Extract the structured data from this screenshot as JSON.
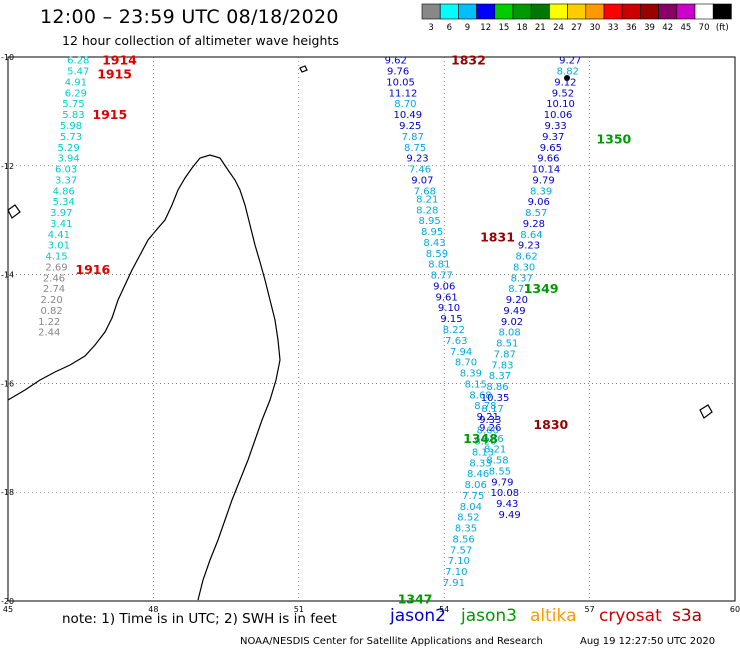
{
  "title": "12:00 – 23:59 UTC 08/18/2020",
  "subtitle": "12 hour collection of altimeter wave heights",
  "legend": {
    "colors": [
      "#888888",
      "#00ffff",
      "#00bfff",
      "#0000ff",
      "#00cc00",
      "#009900",
      "#007700",
      "#ffff00",
      "#ffcc00",
      "#ff9900",
      "#ff0000",
      "#cc0000",
      "#990000",
      "#880066",
      "#cc00cc",
      "#ffffff",
      "#000000"
    ],
    "labels": [
      "3",
      "6",
      "9",
      "12",
      "15",
      "18",
      "21",
      "24",
      "27",
      "30",
      "33",
      "36",
      "39",
      "42",
      "45",
      "70",
      "(ft)"
    ]
  },
  "axes": {
    "x_ticks": [
      45,
      48,
      51,
      54,
      57,
      60
    ],
    "y_ticks": [
      -10,
      -12,
      -14,
      -16,
      -18,
      -20
    ],
    "x_ticks_labels": [
      "45",
      "48",
      "51",
      "54",
      "57",
      "60"
    ],
    "y_ticks_labels": [
      "-10",
      "-12",
      "-14",
      "-16",
      "-18",
      "-20"
    ]
  },
  "note": "note: 1) Time is in UTC; 2) SWH is in feet",
  "satellites": [
    {
      "name": "jason2",
      "color": "#0000cc"
    },
    {
      "name": "jason3",
      "color": "#009900"
    },
    {
      "name": "altika",
      "color": "#ff9900"
    },
    {
      "name": "cryosat",
      "color": "#cc0000"
    },
    {
      "name": "s3a",
      "color": "#aa0000"
    }
  ],
  "footer_credit": "NOAA/NESDIS Center for Satellite Applications and Research",
  "footer_time": "Aug 19 12:27:50 UTC 2020",
  "pass_times": [
    {
      "label": "1914",
      "color": "#dd0000",
      "lon": 47.3,
      "lat": -10.05
    },
    {
      "label": "1915",
      "color": "#dd0000",
      "lon": 47.2,
      "lat": -10.3
    },
    {
      "label": "1915",
      "color": "#dd0000",
      "lon": 47.1,
      "lat": -11.05
    },
    {
      "label": "1916",
      "color": "#dd0000",
      "lon": 46.75,
      "lat": -13.9
    },
    {
      "label": "1832",
      "color": "#990000",
      "lon": 54.5,
      "lat": -10.05
    },
    {
      "label": "1831",
      "color": "#990000",
      "lon": 55.1,
      "lat": -13.3
    },
    {
      "label": "1830",
      "color": "#990000",
      "lon": 56.2,
      "lat": -16.75
    },
    {
      "label": "1350",
      "color": "#009900",
      "lon": 57.5,
      "lat": -11.5
    },
    {
      "label": "1349",
      "color": "#009900",
      "lon": 56.0,
      "lat": -14.25
    },
    {
      "label": "1348",
      "color": "#009900",
      "lon": 54.75,
      "lat": -17.0
    },
    {
      "label": "1347",
      "color": "#009900",
      "lon": 53.4,
      "lat": -19.95
    }
  ],
  "track_west": [
    {
      "v": "6.28",
      "c": "#00cccc",
      "lon": 46.45,
      "lat": -10.05
    },
    {
      "v": "5.47",
      "c": "#00cccc",
      "lon": 46.45,
      "lat": -10.25
    },
    {
      "v": "4.91",
      "c": "#00cccc",
      "lon": 46.4,
      "lat": -10.45
    },
    {
      "v": "6.29",
      "c": "#00cccc",
      "lon": 46.4,
      "lat": -10.65
    },
    {
      "v": "5.75",
      "c": "#00cccc",
      "lon": 46.35,
      "lat": -10.85
    },
    {
      "v": "5.83",
      "c": "#00cccc",
      "lon": 46.35,
      "lat": -11.05
    },
    {
      "v": "5.98",
      "c": "#00cccc",
      "lon": 46.3,
      "lat": -11.25
    },
    {
      "v": "5.73",
      "c": "#00cccc",
      "lon": 46.3,
      "lat": -11.45
    },
    {
      "v": "5.29",
      "c": "#00cccc",
      "lon": 46.25,
      "lat": -11.65
    },
    {
      "v": "3.94",
      "c": "#00cccc",
      "lon": 46.25,
      "lat": -11.85
    },
    {
      "v": "6.03",
      "c": "#00cccc",
      "lon": 46.2,
      "lat": -12.05
    },
    {
      "v": "3.37",
      "c": "#00cccc",
      "lon": 46.2,
      "lat": -12.25
    },
    {
      "v": "4.86",
      "c": "#00cccc",
      "lon": 46.15,
      "lat": -12.45
    },
    {
      "v": "5.34",
      "c": "#00cccc",
      "lon": 46.15,
      "lat": -12.65
    },
    {
      "v": "3.97",
      "c": "#00cccc",
      "lon": 46.1,
      "lat": -12.85
    },
    {
      "v": "3.41",
      "c": "#00cccc",
      "lon": 46.1,
      "lat": -13.05
    },
    {
      "v": "4.41",
      "c": "#00cccc",
      "lon": 46.05,
      "lat": -13.25
    },
    {
      "v": "3.01",
      "c": "#00cccc",
      "lon": 46.05,
      "lat": -13.45
    },
    {
      "v": "4.15",
      "c": "#00cccc",
      "lon": 46.0,
      "lat": -13.65
    },
    {
      "v": "2.69",
      "c": "#888888",
      "lon": 46.0,
      "lat": -13.85
    },
    {
      "v": "2.46",
      "c": "#888888",
      "lon": 45.95,
      "lat": -14.05
    },
    {
      "v": "2.74",
      "c": "#888888",
      "lon": 45.95,
      "lat": -14.25
    },
    {
      "v": "2.20",
      "c": "#888888",
      "lon": 45.9,
      "lat": -14.45
    },
    {
      "v": "0.82",
      "c": "#888888",
      "lon": 45.9,
      "lat": -14.65
    },
    {
      "v": "1.22",
      "c": "#888888",
      "lon": 45.85,
      "lat": -14.85
    },
    {
      "v": "2.44",
      "c": "#888888",
      "lon": 45.85,
      "lat": -15.05
    }
  ],
  "track_s3a": [
    {
      "v": "9.62",
      "c": "#0000cc",
      "lon": 53.0,
      "lat": -10.05
    },
    {
      "v": "9.76",
      "c": "#0000cc",
      "lon": 53.05,
      "lat": -10.25
    },
    {
      "v": "10.05",
      "c": "#0000cc",
      "lon": 53.1,
      "lat": -10.45
    },
    {
      "v": "11.12",
      "c": "#0000cc",
      "lon": 53.15,
      "lat": -10.65
    },
    {
      "v": "8.70",
      "c": "#00aadd",
      "lon": 53.2,
      "lat": -10.85
    },
    {
      "v": "10.49",
      "c": "#0000cc",
      "lon": 53.25,
      "lat": -11.05
    },
    {
      "v": "9.25",
      "c": "#0000cc",
      "lon": 53.3,
      "lat": -11.25
    },
    {
      "v": "7.87",
      "c": "#00aadd",
      "lon": 53.35,
      "lat": -11.45
    },
    {
      "v": "8.75",
      "c": "#00aadd",
      "lon": 53.4,
      "lat": -11.65
    },
    {
      "v": "9.23",
      "c": "#0000cc",
      "lon": 53.45,
      "lat": -11.85
    },
    {
      "v": "7.46",
      "c": "#00aadd",
      "lon": 53.5,
      "lat": -12.05
    },
    {
      "v": "9.07",
      "c": "#0000cc",
      "lon": 53.55,
      "lat": -12.25
    },
    {
      "v": "7.68",
      "c": "#00aadd",
      "lon": 53.6,
      "lat": -12.45
    },
    {
      "v": "8.21",
      "c": "#00aadd",
      "lon": 53.65,
      "lat": -12.6
    },
    {
      "v": "8.28",
      "c": "#00aadd",
      "lon": 53.65,
      "lat": -12.8
    },
    {
      "v": "8.95",
      "c": "#00aadd",
      "lon": 53.7,
      "lat": -13.0
    },
    {
      "v": "8.95",
      "c": "#00aadd",
      "lon": 53.75,
      "lat": -13.2
    },
    {
      "v": "8.43",
      "c": "#00aadd",
      "lon": 53.8,
      "lat": -13.4
    },
    {
      "v": "8.59",
      "c": "#00aadd",
      "lon": 53.85,
      "lat": -13.6
    },
    {
      "v": "8.81",
      "c": "#00aadd",
      "lon": 53.9,
      "lat": -13.8
    },
    {
      "v": "8.77",
      "c": "#00aadd",
      "lon": 53.95,
      "lat": -14.0
    },
    {
      "v": "9.06",
      "c": "#0000cc",
      "lon": 54.0,
      "lat": -14.2
    },
    {
      "v": "9.61",
      "c": "#0000cc",
      "lon": 54.05,
      "lat": -14.4
    },
    {
      "v": "9.10",
      "c": "#0000cc",
      "lon": 54.1,
      "lat": -14.6
    },
    {
      "v": "9.15",
      "c": "#0000cc",
      "lon": 54.15,
      "lat": -14.8
    },
    {
      "v": "8.22",
      "c": "#00aadd",
      "lon": 54.2,
      "lat": -15.0
    },
    {
      "v": "7.63",
      "c": "#00aadd",
      "lon": 54.25,
      "lat": -15.2
    },
    {
      "v": "7.94",
      "c": "#00aadd",
      "lon": 54.35,
      "lat": -15.4
    },
    {
      "v": "8.70",
      "c": "#00aadd",
      "lon": 54.45,
      "lat": -15.6
    },
    {
      "v": "8.39",
      "c": "#00aadd",
      "lon": 54.55,
      "lat": -15.8
    },
    {
      "v": "8.15",
      "c": "#00aadd",
      "lon": 54.65,
      "lat": -16.0
    },
    {
      "v": "8.68",
      "c": "#00aadd",
      "lon": 54.75,
      "lat": -16.2
    },
    {
      "v": "8.78",
      "c": "#00aadd",
      "lon": 54.85,
      "lat": -16.4
    },
    {
      "v": "9.21",
      "c": "#0000cc",
      "lon": 54.9,
      "lat": -16.6
    },
    {
      "v": "9.26",
      "c": "#0000cc",
      "lon": 54.95,
      "lat": -16.8
    },
    {
      "v": "8.46",
      "c": "#00aadd",
      "lon": 55.0,
      "lat": -17.0
    },
    {
      "v": "8.21",
      "c": "#00aadd",
      "lon": 55.05,
      "lat": -17.2
    },
    {
      "v": "8.58",
      "c": "#00aadd",
      "lon": 55.1,
      "lat": -17.4
    },
    {
      "v": "8.55",
      "c": "#00aadd",
      "lon": 55.15,
      "lat": -17.6
    },
    {
      "v": "9.79",
      "c": "#0000cc",
      "lon": 55.2,
      "lat": -17.8
    },
    {
      "v": "10.08",
      "c": "#0000cc",
      "lon": 55.25,
      "lat": -18.0
    },
    {
      "v": "9.43",
      "c": "#0000cc",
      "lon": 55.3,
      "lat": -18.2
    },
    {
      "v": "9.49",
      "c": "#0000cc",
      "lon": 55.35,
      "lat": -18.4
    }
  ],
  "track_j3": [
    {
      "v": "9.27",
      "c": "#0000cc",
      "lon": 56.6,
      "lat": -10.05
    },
    {
      "v": "8.82",
      "c": "#00aadd",
      "lon": 56.55,
      "lat": -10.25
    },
    {
      "v": "9.12",
      "c": "#0000cc",
      "lon": 56.5,
      "lat": -10.45
    },
    {
      "v": "9.52",
      "c": "#0000cc",
      "lon": 56.45,
      "lat": -10.65
    },
    {
      "v": "10.10",
      "c": "#0000cc",
      "lon": 56.4,
      "lat": -10.85
    },
    {
      "v": "10.06",
      "c": "#0000cc",
      "lon": 56.35,
      "lat": -11.05
    },
    {
      "v": "9.33",
      "c": "#0000cc",
      "lon": 56.3,
      "lat": -11.25
    },
    {
      "v": "9.37",
      "c": "#0000cc",
      "lon": 56.25,
      "lat": -11.45
    },
    {
      "v": "9.65",
      "c": "#0000cc",
      "lon": 56.2,
      "lat": -11.65
    },
    {
      "v": "9.66",
      "c": "#0000cc",
      "lon": 56.15,
      "lat": -11.85
    },
    {
      "v": "10.14",
      "c": "#0000cc",
      "lon": 56.1,
      "lat": -12.05
    },
    {
      "v": "9.79",
      "c": "#0000cc",
      "lon": 56.05,
      "lat": -12.25
    },
    {
      "v": "8.39",
      "c": "#00aadd",
      "lon": 56.0,
      "lat": -12.45
    },
    {
      "v": "9.06",
      "c": "#0000cc",
      "lon": 55.95,
      "lat": -12.65
    },
    {
      "v": "8.57",
      "c": "#00aadd",
      "lon": 55.9,
      "lat": -12.85
    },
    {
      "v": "9.28",
      "c": "#0000cc",
      "lon": 55.85,
      "lat": -13.05
    },
    {
      "v": "8.64",
      "c": "#00aadd",
      "lon": 55.8,
      "lat": -13.25
    },
    {
      "v": "9.23",
      "c": "#0000cc",
      "lon": 55.75,
      "lat": -13.45
    },
    {
      "v": "8.62",
      "c": "#00aadd",
      "lon": 55.7,
      "lat": -13.65
    },
    {
      "v": "8.30",
      "c": "#00aadd",
      "lon": 55.65,
      "lat": -13.85
    },
    {
      "v": "8.37",
      "c": "#00aadd",
      "lon": 55.6,
      "lat": -14.05
    },
    {
      "v": "8.71",
      "c": "#00aadd",
      "lon": 55.55,
      "lat": -14.25
    },
    {
      "v": "9.20",
      "c": "#0000cc",
      "lon": 55.5,
      "lat": -14.45
    },
    {
      "v": "9.49",
      "c": "#0000cc",
      "lon": 55.45,
      "lat": -14.65
    },
    {
      "v": "9.02",
      "c": "#0000cc",
      "lon": 55.4,
      "lat": -14.85
    },
    {
      "v": "8.08",
      "c": "#00aadd",
      "lon": 55.35,
      "lat": -15.05
    },
    {
      "v": "8.51",
      "c": "#00aadd",
      "lon": 55.3,
      "lat": -15.25
    },
    {
      "v": "7.87",
      "c": "#00aadd",
      "lon": 55.25,
      "lat": -15.45
    },
    {
      "v": "7.83",
      "c": "#00aadd",
      "lon": 55.2,
      "lat": -15.65
    },
    {
      "v": "8.37",
      "c": "#00aadd",
      "lon": 55.15,
      "lat": -15.85
    },
    {
      "v": "8.86",
      "c": "#00aadd",
      "lon": 55.1,
      "lat": -16.05
    },
    {
      "v": "10.35",
      "c": "#0000cc",
      "lon": 55.05,
      "lat": -16.25
    },
    {
      "v": "8.17",
      "c": "#00aadd",
      "lon": 55.0,
      "lat": -16.45
    },
    {
      "v": "9.33",
      "c": "#0000cc",
      "lon": 54.95,
      "lat": -16.65
    },
    {
      "v": "8.60",
      "c": "#00aadd",
      "lon": 54.9,
      "lat": -16.85
    },
    {
      "v": "8.20",
      "c": "#00aadd",
      "lon": 54.85,
      "lat": -17.05
    },
    {
      "v": "8.13",
      "c": "#00aadd",
      "lon": 54.8,
      "lat": -17.25
    },
    {
      "v": "8.33",
      "c": "#00aadd",
      "lon": 54.75,
      "lat": -17.45
    },
    {
      "v": "8.46",
      "c": "#00aadd",
      "lon": 54.7,
      "lat": -17.65
    },
    {
      "v": "8.06",
      "c": "#00aadd",
      "lon": 54.65,
      "lat": -17.85
    },
    {
      "v": "7.75",
      "c": "#00aadd",
      "lon": 54.6,
      "lat": -18.05
    },
    {
      "v": "8.04",
      "c": "#00aadd",
      "lon": 54.55,
      "lat": -18.25
    },
    {
      "v": "8.52",
      "c": "#00aadd",
      "lon": 54.5,
      "lat": -18.45
    },
    {
      "v": "8.35",
      "c": "#00aadd",
      "lon": 54.45,
      "lat": -18.65
    },
    {
      "v": "8.56",
      "c": "#00aadd",
      "lon": 54.4,
      "lat": -18.85
    },
    {
      "v": "7.57",
      "c": "#00aadd",
      "lon": 54.35,
      "lat": -19.05
    },
    {
      "v": "7.10",
      "c": "#00aadd",
      "lon": 54.3,
      "lat": -19.25
    },
    {
      "v": "7.10",
      "c": "#00aadd",
      "lon": 54.25,
      "lat": -19.45
    },
    {
      "v": "7.91",
      "c": "#00aadd",
      "lon": 54.2,
      "lat": -19.65
    }
  ]
}
